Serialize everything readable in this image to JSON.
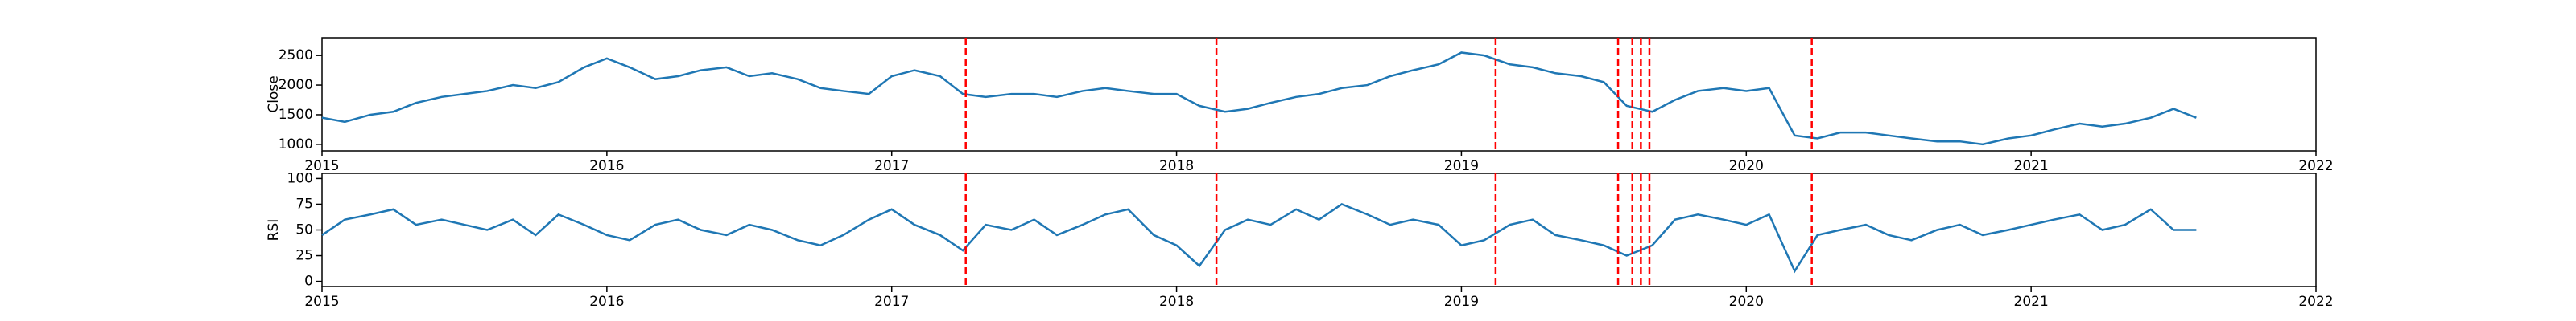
{
  "chart_data": [
    {
      "type": "line",
      "ylabel": "Close",
      "x": [
        2015.0,
        2015.08,
        2015.17,
        2015.25,
        2015.33,
        2015.42,
        2015.5,
        2015.58,
        2015.67,
        2015.75,
        2015.83,
        2015.92,
        2016.0,
        2016.08,
        2016.17,
        2016.25,
        2016.33,
        2016.42,
        2016.5,
        2016.58,
        2016.67,
        2016.75,
        2016.83,
        2016.92,
        2017.0,
        2017.08,
        2017.17,
        2017.25,
        2017.33,
        2017.42,
        2017.5,
        2017.58,
        2017.67,
        2017.75,
        2017.83,
        2017.92,
        2018.0,
        2018.08,
        2018.17,
        2018.25,
        2018.33,
        2018.42,
        2018.5,
        2018.58,
        2018.67,
        2018.75,
        2018.83,
        2018.92,
        2019.0,
        2019.08,
        2019.17,
        2019.25,
        2019.33,
        2019.42,
        2019.5,
        2019.58,
        2019.67,
        2019.75,
        2019.83,
        2019.92,
        2020.0,
        2020.08,
        2020.17,
        2020.25,
        2020.33,
        2020.42,
        2020.5,
        2020.58,
        2020.67,
        2020.75,
        2020.83,
        2020.92,
        2021.0,
        2021.08,
        2021.17,
        2021.25,
        2021.33,
        2021.42,
        2021.5,
        2021.58
      ],
      "series": [
        {
          "color": "#1f77b4",
          "values": [
            1450,
            1380,
            1500,
            1550,
            1700,
            1800,
            1850,
            1900,
            2000,
            1950,
            2050,
            2300,
            2450,
            2300,
            2100,
            2150,
            2250,
            2300,
            2150,
            2200,
            2100,
            1950,
            1900,
            1850,
            2150,
            2250,
            2150,
            1850,
            1800,
            1850,
            1850,
            1800,
            1900,
            1950,
            1900,
            1850,
            1850,
            1650,
            1550,
            1600,
            1700,
            1800,
            1850,
            1950,
            2000,
            2150,
            2250,
            2350,
            2550,
            2500,
            2350,
            2300,
            2200,
            2150,
            2050,
            1650,
            1550,
            1750,
            1900,
            1950,
            1900,
            1950,
            1150,
            1100,
            1200,
            1200,
            1150,
            1100,
            1050,
            1050,
            1000,
            1100,
            1150,
            1250,
            1350,
            1300,
            1350,
            1450,
            1600,
            1450
          ]
        }
      ],
      "vlines": [
        2017.26,
        2018.14,
        2019.12,
        2019.55,
        2019.6,
        2019.63,
        2019.66,
        2020.23
      ],
      "vline_color": "#ff0000",
      "xlim": [
        2015,
        2022
      ],
      "xticks": [
        2015,
        2016,
        2017,
        2018,
        2019,
        2020,
        2021,
        2022
      ],
      "ylim": [
        890,
        2800
      ],
      "yticks": [
        1000,
        1500,
        2000,
        2500
      ]
    },
    {
      "type": "line",
      "ylabel": "RSI",
      "x": [
        2015.0,
        2015.08,
        2015.17,
        2015.25,
        2015.33,
        2015.42,
        2015.5,
        2015.58,
        2015.67,
        2015.75,
        2015.83,
        2015.92,
        2016.0,
        2016.08,
        2016.17,
        2016.25,
        2016.33,
        2016.42,
        2016.5,
        2016.58,
        2016.67,
        2016.75,
        2016.83,
        2016.92,
        2017.0,
        2017.08,
        2017.17,
        2017.25,
        2017.33,
        2017.42,
        2017.5,
        2017.58,
        2017.67,
        2017.75,
        2017.83,
        2017.92,
        2018.0,
        2018.08,
        2018.17,
        2018.25,
        2018.33,
        2018.42,
        2018.5,
        2018.58,
        2018.67,
        2018.75,
        2018.83,
        2018.92,
        2019.0,
        2019.08,
        2019.17,
        2019.25,
        2019.33,
        2019.42,
        2019.5,
        2019.58,
        2019.67,
        2019.75,
        2019.83,
        2019.92,
        2020.0,
        2020.08,
        2020.17,
        2020.25,
        2020.33,
        2020.42,
        2020.5,
        2020.58,
        2020.67,
        2020.75,
        2020.83,
        2020.92,
        2021.0,
        2021.08,
        2021.17,
        2021.25,
        2021.33,
        2021.42,
        2021.5,
        2021.58
      ],
      "series": [
        {
          "color": "#1f77b4",
          "values": [
            45,
            60,
            65,
            70,
            55,
            60,
            55,
            50,
            60,
            45,
            65,
            55,
            45,
            40,
            55,
            60,
            50,
            45,
            55,
            50,
            40,
            35,
            45,
            60,
            70,
            55,
            45,
            30,
            55,
            50,
            60,
            45,
            55,
            65,
            70,
            45,
            35,
            15,
            50,
            60,
            55,
            70,
            60,
            75,
            65,
            55,
            60,
            55,
            35,
            40,
            55,
            60,
            45,
            40,
            35,
            25,
            35,
            60,
            65,
            60,
            55,
            65,
            10,
            45,
            50,
            55,
            45,
            40,
            50,
            55,
            45,
            50,
            55,
            60,
            65,
            50,
            55,
            70,
            50,
            50
          ]
        }
      ],
      "vlines": [
        2017.26,
        2018.14,
        2019.12,
        2019.55,
        2019.6,
        2019.63,
        2019.66,
        2020.23
      ],
      "vline_color": "#ff0000",
      "xlim": [
        2015,
        2022
      ],
      "xticks": [
        2015,
        2016,
        2017,
        2018,
        2019,
        2020,
        2021,
        2022
      ],
      "ylim": [
        -5,
        105
      ],
      "yticks": [
        0,
        25,
        50,
        75,
        100
      ]
    }
  ]
}
